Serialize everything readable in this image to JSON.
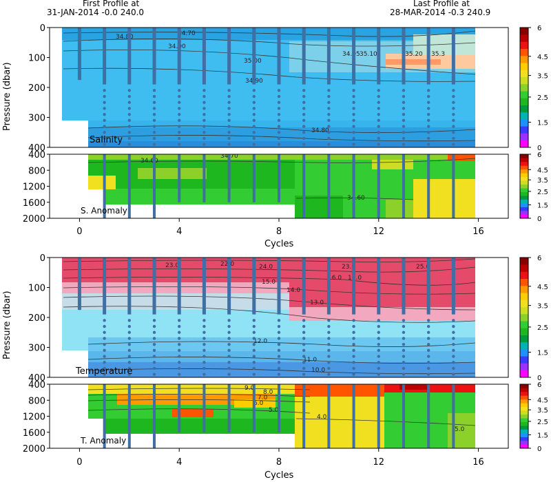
{
  "header": {
    "first_label": "First Profile at",
    "first_value": "31-JAN-2014   -0.0 240.0",
    "last_label": "Last Profile at",
    "last_value": "28-MAR-2014   -0.3 240.9"
  },
  "colorbar_ticks": [
    "6",
    "4.5",
    "3.5",
    "2.5",
    "1.5",
    "0"
  ],
  "colorbar_colors": [
    "#ff00ff",
    "#9b30ff",
    "#3a3aff",
    "#1e90ff",
    "#00b2b2",
    "#009a3e",
    "#1fb71f",
    "#33cc33",
    "#8bd12a",
    "#ccdd22",
    "#f0e020",
    "#ffcc00",
    "#ff9900",
    "#ff5500",
    "#ee1111",
    "#bb0000",
    "#880000"
  ],
  "chart_data": [
    {
      "type": "heatmap",
      "panel": "salinity",
      "label": "Salinity",
      "ylabel": "Pressure (dbar)",
      "yticks": [
        "0",
        "100",
        "200",
        "300",
        "400"
      ],
      "ylim": [
        0,
        400
      ],
      "xlim": [
        -1.2,
        17.2
      ],
      "contour_labels": [
        "34.80",
        "34.70",
        "34.90",
        "35.00",
        "34.90",
        "34.80",
        "34.90",
        "35.10",
        "35.20",
        "35.3"
      ],
      "fill": "salinity (approx 34.8 at depth rising to 35.3 near 100 dbar in late cycles)"
    },
    {
      "type": "heatmap",
      "panel": "salinity-anomaly",
      "label": "S. Anomaly",
      "yticks": [
        "400",
        "800",
        "1200",
        "1600",
        "2000"
      ],
      "ylim": [
        400,
        2000
      ],
      "contour_labels": [
        "34.60",
        "34.70",
        "34.60"
      ]
    },
    {
      "type": "heatmap",
      "panel": "temperature",
      "label": "Temperature",
      "ylabel": "Pressure (dbar)",
      "yticks": [
        "0",
        "100",
        "200",
        "300",
        "400"
      ],
      "ylim": [
        0,
        400
      ],
      "xticks": [
        "0",
        "4",
        "8",
        "12",
        "16"
      ],
      "xlabel": "Cycles",
      "contour_labels": [
        "23.0",
        "22.0",
        "24.0",
        "23.0",
        "25.0",
        "15.0",
        "16.0",
        "14.0",
        "13.0",
        "18.0",
        "12.0",
        "11.0",
        "10.0"
      ]
    },
    {
      "type": "heatmap",
      "panel": "temperature-anomaly",
      "label": "T. Anomaly",
      "yticks": [
        "400",
        "800",
        "1200",
        "1600",
        "2000"
      ],
      "ylim": [
        400,
        2000
      ],
      "contour_labels": [
        "9.0",
        "8.0",
        "7.0",
        "6.0",
        "5.0",
        "4.0",
        "5.0"
      ]
    }
  ],
  "axes": {
    "xticks": [
      "0",
      "4",
      "8",
      "12",
      "16"
    ],
    "xtick_values": [
      0,
      4,
      8,
      12,
      16
    ],
    "xlabel": "Cycles",
    "ylabel": "Pressure (dbar)"
  },
  "profiles": {
    "cycles": [
      0,
      1,
      2,
      3,
      4,
      5,
      6,
      7,
      8,
      9,
      10,
      11,
      12,
      13,
      14,
      15
    ],
    "max_pressure": [
      175,
      2000,
      2000,
      2000,
      1600,
      1600,
      1600,
      1600,
      1600,
      2000,
      2000,
      2000,
      2000,
      2000,
      2000,
      2000
    ]
  }
}
